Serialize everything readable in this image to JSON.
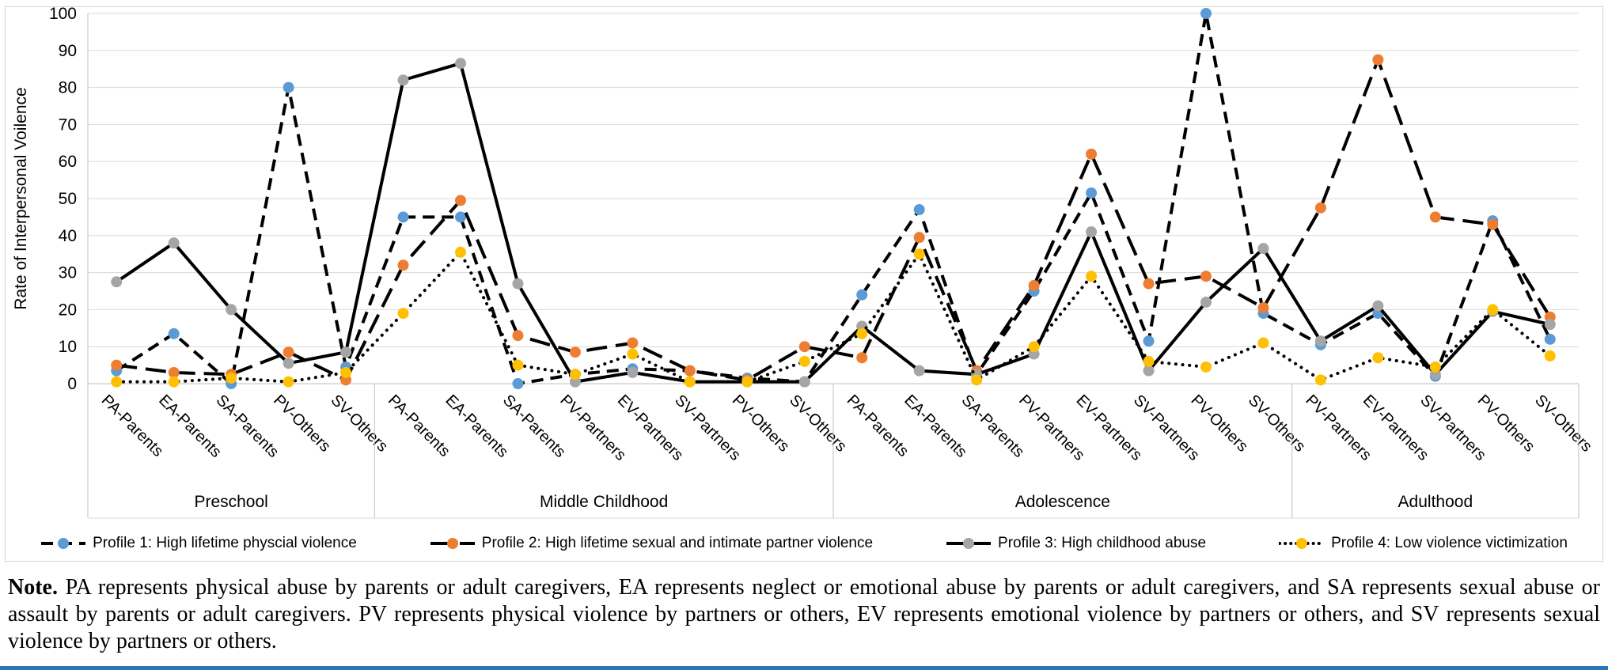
{
  "chart_data": {
    "type": "line",
    "ylabel": "Rate of Interpersonal Voilence",
    "ylim": [
      0,
      100
    ],
    "ytick_step": 10,
    "grid": true,
    "legend_position": "bottom",
    "categories": [
      "PA-Parents",
      "EA-Parents",
      "SA-Parents",
      "PV-Others",
      "SV-Others",
      "PA-Parents",
      "EA-Parents",
      "SA-Parents",
      "PV-Partners",
      "EV-Partners",
      "SV-Partners",
      "PV-Others",
      "SV-Others",
      "PA-Parents",
      "EA-Parents",
      "SA-Parents",
      "PV-Partners",
      "EV-Partners",
      "SV-Partners",
      "PV-Others",
      "SV-Others",
      "PV-Partners",
      "EV-Partners",
      "SV-Partners",
      "PV-Others",
      "SV-Others"
    ],
    "groups": [
      {
        "label": "Preschool",
        "count": 5
      },
      {
        "label": "Middle Childhood",
        "count": 8
      },
      {
        "label": "Adolescence",
        "count": 8
      },
      {
        "label": "Adulthood",
        "count": 5
      }
    ],
    "series": [
      {
        "name": "Profile 1: High lifetime physcial violence",
        "color": "#5B9BD5",
        "line_style": "dashed",
        "line_color": "#000000",
        "values": [
          3.5,
          13.5,
          0,
          80,
          4.5,
          45,
          45,
          0,
          2.5,
          4,
          3.5,
          1.5,
          0.5,
          24,
          47,
          2.5,
          25,
          51.5,
          11.5,
          100,
          19,
          10.5,
          19,
          2,
          44,
          12
        ]
      },
      {
        "name": "Profile 2: High lifetime sexual and intimate partner violence",
        "color": "#ED7D31",
        "line_style": "long-dash",
        "line_color": "#000000",
        "values": [
          5,
          3,
          2.5,
          8.5,
          1,
          32,
          49.5,
          13,
          8.5,
          11,
          3.5,
          1,
          10,
          7,
          39.5,
          3.5,
          26.5,
          62,
          27,
          29,
          20.5,
          47.5,
          87.5,
          45,
          43,
          18
        ]
      },
      {
        "name": "Profile 3: High childhood abuse",
        "color": "#A5A5A5",
        "line_style": "solid",
        "line_color": "#000000",
        "values": [
          27.5,
          38,
          20,
          5.5,
          8.5,
          82,
          86.5,
          27,
          0.5,
          3,
          0.5,
          0.5,
          0.5,
          15.5,
          3.5,
          2.5,
          8,
          41,
          3.5,
          22,
          36.5,
          11.5,
          21,
          2.5,
          19.5,
          16
        ]
      },
      {
        "name": "Profile 4: Low violence victimization",
        "color": "#FFC000",
        "line_style": "dotted",
        "line_color": "#000000",
        "values": [
          0.5,
          0.5,
          1.5,
          0.5,
          3,
          19,
          35.5,
          5,
          2.5,
          8,
          0.5,
          0.5,
          6,
          13.5,
          35,
          1,
          10,
          29,
          6,
          4.5,
          11,
          1,
          7,
          4.5,
          20,
          7.5
        ]
      }
    ],
    "colors": {
      "gridline": "#D9D9D9",
      "axis_line": "#BFBFBF",
      "text": "#000000"
    }
  },
  "note": {
    "label": "Note.",
    "text": "PA represents physical abuse by parents or adult caregivers, EA represents neglect or emotional abuse by parents or adult caregivers, and SA represents sexual abuse or assault by parents or adult caregivers. PV represents physical violence by partners or others, EV represents emotional violence by partners or others, and SV represents sexual violence by partners or others."
  },
  "bottom_rule_color": "#2E75B6"
}
